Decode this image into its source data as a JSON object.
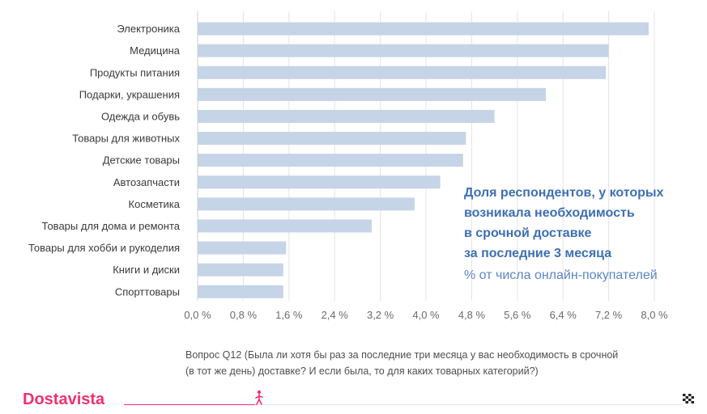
{
  "chart_data": {
    "type": "bar",
    "orientation": "horizontal",
    "categories": [
      "Электроника",
      "Медицина",
      "Продукты питания",
      "Подарки, украшения",
      "Одежда и обувь",
      "Товары для животных",
      "Детские товары",
      "Автозапчасти",
      "Косметика",
      "Товары для дома и ремонта",
      "Товары для хобби и рукоделия",
      "Книги и диски",
      "Спорттовары"
    ],
    "values": [
      7.9,
      7.2,
      7.15,
      6.1,
      5.2,
      4.7,
      4.65,
      4.25,
      3.8,
      3.05,
      1.55,
      1.5,
      1.5
    ],
    "x_ticks": [
      0,
      0.8,
      1.6,
      2.4,
      3.2,
      4.0,
      4.8,
      5.6,
      6.4,
      7.2,
      8.0
    ],
    "x_tick_labels": [
      "0,0 %",
      "0,8 %",
      "1,6 %",
      "2,4 %",
      "3,2 %",
      "4,0 %",
      "4,8 %",
      "5,6 %",
      "6,4 %",
      "7,2 %",
      "8,0 %"
    ],
    "xlim": [
      0,
      8.0
    ],
    "xlabel": "",
    "ylabel": "",
    "grid": true,
    "colors": {
      "bar": "#c5d4e6",
      "title": "#3d6fb4"
    }
  },
  "legend": {
    "title_lines": [
      "Доля респондентов, у которых",
      "возникала необходимость",
      "в срочной доставке",
      "за последние 3 месяца"
    ],
    "subtitle": "% от числа онлайн-покупателей"
  },
  "footnote": {
    "line1": "Вопрос Q12 (Была ли хотя бы раз за последние три месяца у вас необходимость в срочной",
    "line2": "(в тот же день) доставке? И если была, то для каких товарных категорий?)"
  },
  "brand": {
    "name": "Dostavista",
    "color": "#f0306e"
  },
  "progress": {
    "fraction": 0.24
  }
}
